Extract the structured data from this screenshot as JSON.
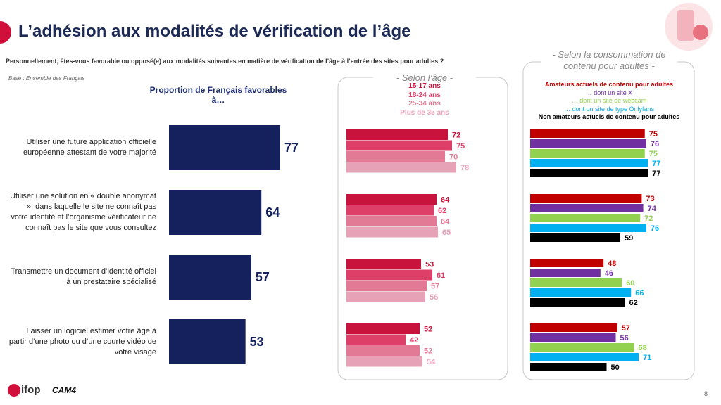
{
  "slide": {
    "title": "L’adhésion aux modalités de vérification de l’âge",
    "question": "Personnellement, êtes-vous favorable ou opposé(e) aux modalités suivantes en matière de vérification de l’âge à l’entrée des sites pour adultes ?",
    "base": "Base : Ensemble des Français",
    "logo_left": "ifop",
    "logo_right": "CAM4",
    "page_number": "8"
  },
  "chart_data": [
    {
      "type": "bar",
      "orientation": "horizontal",
      "title": "Proportion de Français favorables à…",
      "categories": [
        "Utiliser une future application officielle européenne attestant de votre majorité",
        "Utiliser une solution en « double anonymat », dans laquelle le site ne connaît pas votre identité et l’organisme vérificateur ne connaît pas le site que vous consultez",
        "Transmettre un document d’identité officiel à un prestataire spécialisé",
        "Laisser un logiciel estimer votre âge à partir d’une photo ou d’une courte vidéo de votre visage"
      ],
      "values": [
        77,
        64,
        57,
        53
      ],
      "color": "#14215c",
      "xlim": [
        0,
        100
      ]
    },
    {
      "type": "bar",
      "orientation": "horizontal",
      "title": "- Selon l’âge -",
      "series": [
        {
          "name": "15-17 ans",
          "color": "#c8143c",
          "values": [
            72,
            64,
            53,
            52
          ]
        },
        {
          "name": "18-24 ans",
          "color": "#de3f68",
          "values": [
            75,
            62,
            61,
            42
          ]
        },
        {
          "name": "25-34 ans",
          "color": "#e27a95",
          "values": [
            70,
            64,
            57,
            52
          ]
        },
        {
          "name": "Plus de 35 ans",
          "color": "#e6a2b6",
          "values": [
            78,
            65,
            56,
            54
          ]
        }
      ],
      "xlim": [
        0,
        100
      ]
    },
    {
      "type": "bar",
      "orientation": "horizontal",
      "title": "- Selon la consommation de contenu pour adultes -",
      "series": [
        {
          "name": "Amateurs actuels de contenu pour adultes",
          "color": "#c00000",
          "values": [
            75,
            73,
            48,
            57
          ]
        },
        {
          "name": "… dont un site X",
          "color": "#7030a0",
          "values": [
            76,
            74,
            46,
            56
          ]
        },
        {
          "name": "… dont un site de webcam",
          "color": "#92d050",
          "values": [
            75,
            72,
            60,
            68
          ]
        },
        {
          "name": "… dont un site de type Onlyfans",
          "color": "#00b0f0",
          "values": [
            77,
            76,
            66,
            71
          ]
        },
        {
          "name": "Non amateurs actuels de contenu pour adultes",
          "color": "#000000",
          "values": [
            77,
            59,
            62,
            50
          ]
        }
      ],
      "xlim": [
        0,
        100
      ]
    }
  ]
}
